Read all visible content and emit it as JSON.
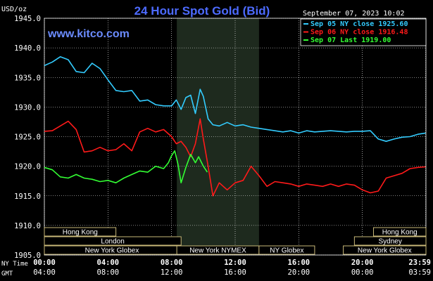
{
  "chart_data": {
    "type": "line",
    "title": "24 Hour Spot Gold (Bid)",
    "website": "www.kitco.com",
    "timestamp": "September 07, 2023 10:02",
    "ylabel": "USD/oz",
    "ylim": [
      1905,
      1945
    ],
    "y_ticks": [
      "1945.0",
      "1940.0",
      "1935.0",
      "1930.0",
      "1925.0",
      "1920.0",
      "1915.0",
      "1910.0",
      "1905.0"
    ],
    "y_tick_values": [
      1945,
      1940,
      1935,
      1930,
      1925,
      1920,
      1915,
      1910,
      1905
    ],
    "x_axis_name_ny": "NY Time",
    "x_axis_name_gmt": "GMT",
    "x_ticks_ny": [
      "00:00",
      "04:00",
      "08:00",
      "12:00",
      "16:00",
      "20:00",
      "23:59"
    ],
    "x_ticks_gmt": [
      "04:00",
      "08:00",
      "12:00",
      "16:00",
      "20:00",
      "00:00",
      "03:59"
    ],
    "x_tick_hours": [
      0,
      4,
      8,
      12,
      16,
      20,
      23.98
    ],
    "xlim": [
      0,
      24
    ],
    "legend_position": "top-right",
    "highlight_band_hours": [
      8.33,
      13.5
    ],
    "grid": true,
    "colors": {
      "sep05": "#33ccff",
      "sep06": "#ff1a1a",
      "sep07": "#33ff33",
      "title": "#4d6bff",
      "website": "#6b8cff",
      "grid": "#ffffff",
      "band": "#1e2a1e",
      "session_box": "#c8b878",
      "session_text": "#ffffff",
      "axis_text": "#ffffff"
    },
    "series": [
      {
        "name": "Sep 05 NY close 1925.60",
        "key": "sep05",
        "x": [
          0,
          0.5,
          1.0,
          1.5,
          2.0,
          2.5,
          3.0,
          3.5,
          4.0,
          4.5,
          5.0,
          5.5,
          6.0,
          6.5,
          7.0,
          7.5,
          8.0,
          8.3,
          8.6,
          8.9,
          9.2,
          9.5,
          9.8,
          10.0,
          10.3,
          10.6,
          11.0,
          11.5,
          12.0,
          12.5,
          13.0,
          13.5,
          14.0,
          15.0,
          15.5,
          16.0,
          16.5,
          17.0,
          18.0,
          19.0,
          19.5,
          20.0,
          20.5,
          21.0,
          21.5,
          22.0,
          22.5,
          23.0,
          23.5,
          23.98
        ],
        "values": [
          1937.0,
          1937.6,
          1938.5,
          1938.0,
          1936.0,
          1935.8,
          1937.4,
          1936.5,
          1934.6,
          1932.8,
          1932.6,
          1932.8,
          1931.0,
          1931.2,
          1930.4,
          1930.2,
          1930.2,
          1931.2,
          1929.6,
          1931.6,
          1932.0,
          1928.9,
          1933.0,
          1931.8,
          1928.0,
          1927.0,
          1926.8,
          1927.4,
          1926.8,
          1927.0,
          1926.6,
          1926.4,
          1926.2,
          1925.8,
          1926.0,
          1925.6,
          1926.0,
          1925.8,
          1926.0,
          1925.8,
          1925.9,
          1925.9,
          1926.0,
          1924.6,
          1924.2,
          1924.6,
          1924.9,
          1925.0,
          1925.4,
          1925.6
        ]
      },
      {
        "name": "Sep 06 NY close 1916.48",
        "key": "sep06",
        "x": [
          0,
          0.5,
          1.0,
          1.5,
          2.0,
          2.5,
          3.0,
          3.5,
          4.0,
          4.5,
          5.0,
          5.5,
          6.0,
          6.5,
          7.0,
          7.5,
          8.0,
          8.3,
          8.6,
          8.9,
          9.2,
          9.5,
          9.8,
          10.0,
          10.3,
          10.6,
          11.0,
          11.5,
          12.0,
          12.5,
          13.0,
          13.5,
          14.0,
          14.5,
          15.0,
          15.5,
          16.0,
          16.5,
          17.0,
          17.5,
          18.0,
          18.5,
          19.0,
          19.5,
          20.0,
          20.5,
          21.0,
          21.5,
          22.0,
          22.5,
          23.0,
          23.5,
          23.98
        ],
        "values": [
          1925.9,
          1926.0,
          1926.8,
          1927.6,
          1926.2,
          1922.4,
          1922.6,
          1923.2,
          1922.6,
          1922.8,
          1923.8,
          1922.6,
          1925.8,
          1926.4,
          1925.8,
          1926.2,
          1925.0,
          1923.8,
          1924.2,
          1923.2,
          1921.6,
          1923.8,
          1928.0,
          1924.6,
          1920.0,
          1915.0,
          1917.2,
          1916.0,
          1917.2,
          1917.6,
          1920.0,
          1918.4,
          1916.6,
          1917.4,
          1917.2,
          1917.0,
          1916.6,
          1917.0,
          1916.8,
          1916.6,
          1917.0,
          1916.6,
          1917.0,
          1916.8,
          1916.0,
          1915.5,
          1915.8,
          1918.0,
          1918.4,
          1918.8,
          1919.6,
          1919.8,
          1919.9
        ]
      },
      {
        "name": "Sep 07 Last 1919.00",
        "key": "sep07",
        "x": [
          0,
          0.5,
          1.0,
          1.5,
          2.0,
          2.5,
          3.0,
          3.5,
          4.0,
          4.5,
          5.0,
          5.5,
          6.0,
          6.5,
          7.0,
          7.5,
          7.8,
          8.0,
          8.2,
          8.4,
          8.6,
          8.9,
          9.2,
          9.5,
          9.7,
          10.0,
          10.25
        ],
        "values": [
          1919.8,
          1919.4,
          1918.2,
          1918.0,
          1918.6,
          1918.0,
          1917.8,
          1917.4,
          1917.6,
          1917.2,
          1918.0,
          1918.6,
          1919.2,
          1919.0,
          1920.0,
          1919.6,
          1920.6,
          1921.8,
          1922.6,
          1920.4,
          1917.2,
          1919.8,
          1922.0,
          1920.6,
          1921.6,
          1920.0,
          1919.0
        ]
      }
    ],
    "sessions": [
      {
        "label": "Hong Kong",
        "start": 0,
        "end": 4.5,
        "row": 0
      },
      {
        "label": "London",
        "start": 0,
        "end": 8.6,
        "row": 1
      },
      {
        "label": "New York Globex",
        "start": 0,
        "end": 8.5,
        "row": 2
      },
      {
        "label": "New York NYMEX",
        "start": 8.33,
        "end": 13.5,
        "row": 2
      },
      {
        "label": "NY Globex",
        "start": 13.5,
        "end": 17.0,
        "row": 2
      },
      {
        "label": "Hong Kong",
        "start": 20.7,
        "end": 24.0,
        "row": 0
      },
      {
        "label": "Sydney",
        "start": 19.5,
        "end": 24.0,
        "row": 1
      },
      {
        "label": "New York Globex",
        "start": 18.8,
        "end": 24.0,
        "row": 2
      }
    ]
  }
}
